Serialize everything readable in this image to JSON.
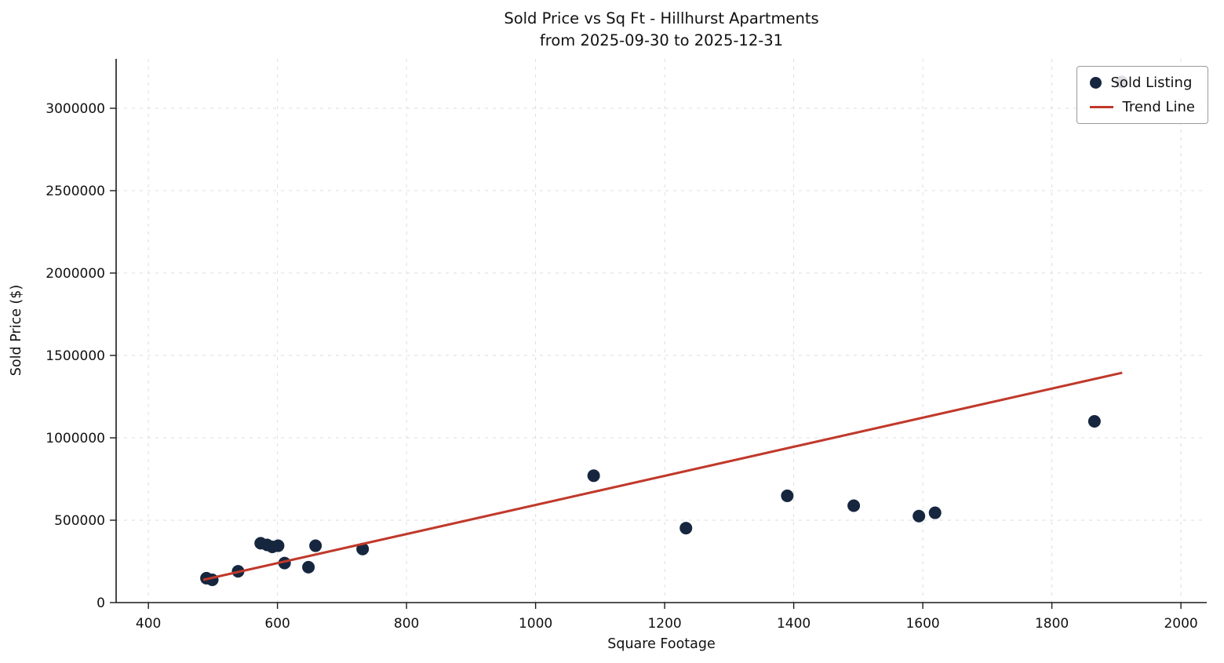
{
  "title": {
    "line1": "Sold Price vs Sq Ft - Hillhurst Apartments",
    "line2": "from 2025-09-30 to 2025-12-31"
  },
  "chart_data": {
    "type": "scatter",
    "title": "Sold Price vs Sq Ft - Hillhurst Apartments\nfrom 2025-09-30 to 2025-12-31",
    "xlabel": "Square Footage",
    "ylabel": "Sold Price ($)",
    "xlim": [
      350,
      2040
    ],
    "ylim": [
      0,
      3300000
    ],
    "grid": true,
    "x_ticks": [
      400,
      600,
      800,
      1000,
      1200,
      1400,
      1600,
      1800,
      2000
    ],
    "x_tick_labels": [
      "400",
      "600",
      "800",
      "1000",
      "1200",
      "1400",
      "1600",
      "1800",
      "2000"
    ],
    "y_ticks": [
      0,
      500000,
      1000000,
      1500000,
      2000000,
      2500000,
      3000000
    ],
    "y_tick_labels": [
      "0",
      "500000",
      "1000000",
      "1500000",
      "2000000",
      "2500000",
      "3000000"
    ],
    "colors": {
      "scatter": "#16263f",
      "trend": "#c0392b"
    },
    "legend": {
      "position": "upper right",
      "entries": [
        {
          "label": "Sold Listing",
          "type": "marker",
          "color": "#16263f"
        },
        {
          "label": "Trend Line",
          "type": "line",
          "color": "#c0392b"
        }
      ]
    },
    "series": [
      {
        "name": "Sold Listing",
        "type": "scatter",
        "color": "#16263f",
        "points": [
          [
            490,
            148000
          ],
          [
            499,
            138000
          ],
          [
            539,
            190000
          ],
          [
            574,
            360000
          ],
          [
            584,
            350000
          ],
          [
            592,
            338000
          ],
          [
            601,
            345000
          ],
          [
            611,
            240000
          ],
          [
            648,
            215000
          ],
          [
            659,
            345000
          ],
          [
            732,
            325000
          ],
          [
            1090,
            770000
          ],
          [
            1233,
            452000
          ],
          [
            1390,
            648000
          ],
          [
            1493,
            588000
          ],
          [
            1594,
            525000
          ],
          [
            1619,
            545000
          ],
          [
            1866,
            1100000
          ],
          [
            1908,
            3160000
          ]
        ]
      },
      {
        "name": "Trend Line",
        "type": "line",
        "color": "#c0392b",
        "points": [
          [
            485,
            138000
          ],
          [
            1909,
            1395000
          ]
        ]
      }
    ]
  }
}
